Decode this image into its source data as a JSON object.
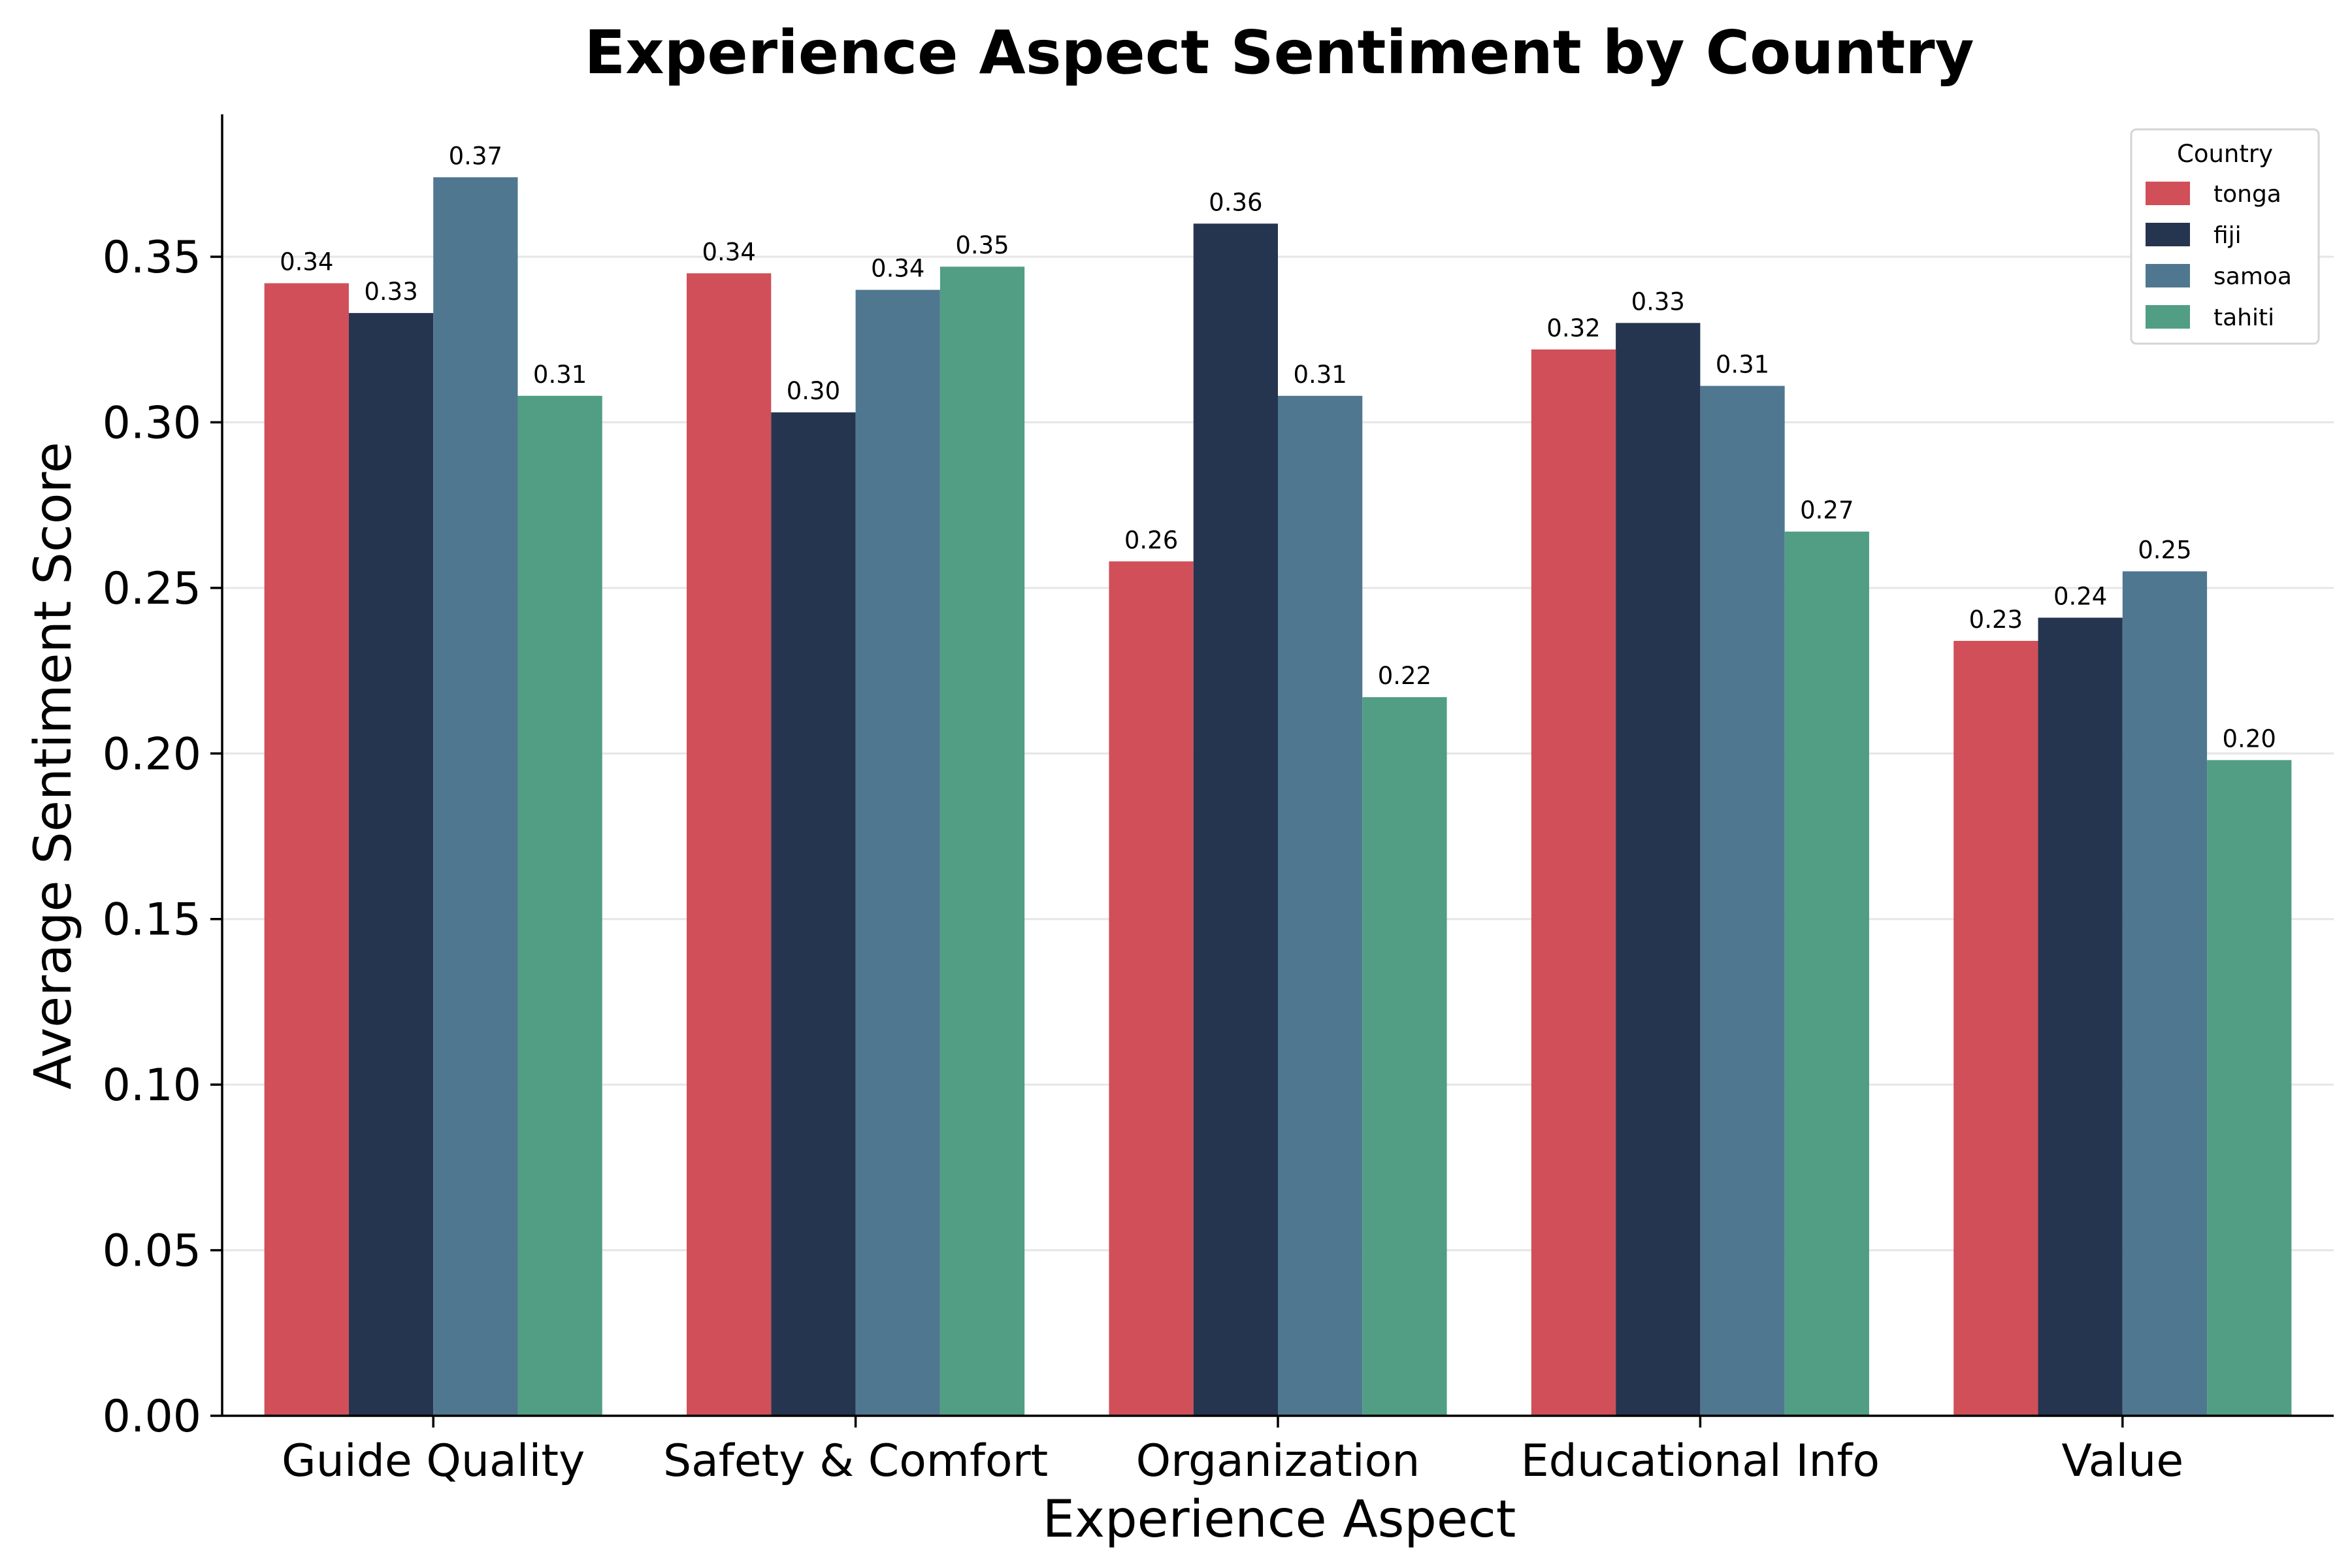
{
  "chart_data": {
    "type": "bar",
    "title": "Experience Aspect Sentiment by Country",
    "xlabel": "Experience Aspect",
    "ylabel": "Average Sentiment Score",
    "categories": [
      "Guide Quality",
      "Safety & Comfort",
      "Organization",
      "Educational Info",
      "Value"
    ],
    "series": [
      {
        "name": "tonga",
        "color": "#d04f59",
        "values": [
          0.342,
          0.345,
          0.258,
          0.322,
          0.234
        ]
      },
      {
        "name": "fiji",
        "color": "#25354f",
        "values": [
          0.333,
          0.303,
          0.36,
          0.33,
          0.241
        ]
      },
      {
        "name": "samoa",
        "color": "#507790",
        "values": [
          0.374,
          0.34,
          0.308,
          0.311,
          0.255
        ]
      },
      {
        "name": "tahiti",
        "color": "#519e84",
        "values": [
          0.308,
          0.347,
          0.217,
          0.267,
          0.198
        ]
      }
    ],
    "data_labels": [
      [
        "0.34",
        "0.33",
        "0.37",
        "0.31"
      ],
      [
        "0.34",
        "0.30",
        "0.34",
        "0.35"
      ],
      [
        "0.26",
        "0.36",
        "0.31",
        "0.22"
      ],
      [
        "0.32",
        "0.33",
        "0.31",
        "0.27"
      ],
      [
        "0.23",
        "0.24",
        "0.25",
        "0.20"
      ]
    ],
    "ylim": [
      0,
      0.393
    ],
    "yticks": [
      0.0,
      0.05,
      0.1,
      0.15,
      0.2,
      0.25,
      0.3,
      0.35
    ],
    "ytick_labels": [
      "0.00",
      "0.05",
      "0.10",
      "0.15",
      "0.20",
      "0.25",
      "0.30",
      "0.35"
    ],
    "grid": "y",
    "legend": {
      "title": "Country",
      "position": "top-right"
    }
  }
}
